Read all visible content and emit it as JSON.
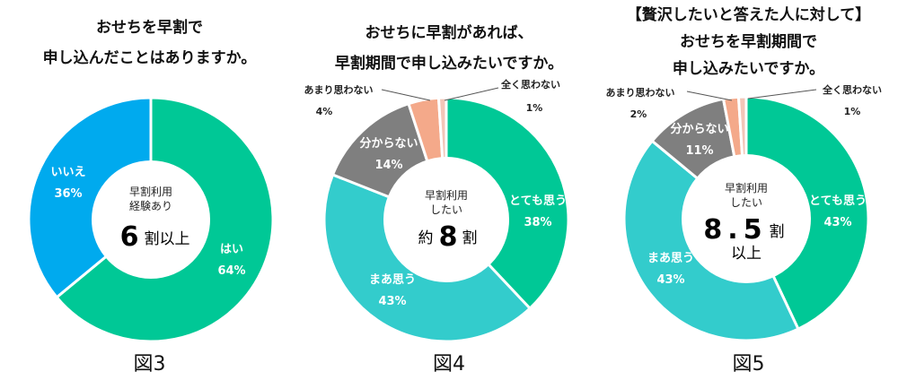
{
  "chart_data": [
    {
      "type": "pie",
      "title_lines": [
        "おせちを早割で",
        "申し込んだことはありますか。"
      ],
      "center": {
        "line1": "早割利用",
        "line2": "経験あり",
        "big": "6",
        "suffix": "割以上"
      },
      "series": [
        {
          "name": "はい",
          "value": 64,
          "label": "64%",
          "color": "#00c896"
        },
        {
          "name": "いいえ",
          "value": 36,
          "label": "36%",
          "color": "#00aaee"
        }
      ],
      "figure_label": "図3"
    },
    {
      "type": "pie",
      "title_lines": [
        "おせちに早割があれば、",
        "早割期間で申し込みたいですか。"
      ],
      "center": {
        "line1": "早割利用",
        "line2": "したい",
        "prefix": "約",
        "big": "8",
        "suffix": "割"
      },
      "series": [
        {
          "name": "とても思う",
          "value": 38,
          "label": "38%",
          "color": "#00c896"
        },
        {
          "name": "まあ思う",
          "value": 43,
          "label": "43%",
          "color": "#33cccc"
        },
        {
          "name": "分からない",
          "value": 14,
          "label": "14%",
          "color": "#7f7f7f"
        },
        {
          "name": "あまり思わない",
          "value": 4,
          "label": "4%",
          "color": "#f4a98a"
        },
        {
          "name": "全く思わない",
          "value": 1,
          "label": "1%",
          "color": "#f2c6b8"
        }
      ],
      "figure_label": "図4"
    },
    {
      "type": "pie",
      "title_lines": [
        "【贅沢したいと答えた人に対して】",
        "おせちを早割期間で",
        "申し込みたいですか。"
      ],
      "center": {
        "line1": "早割利用",
        "line2": "したい",
        "big": "8.5",
        "suffix": "割",
        "line3": "以上"
      },
      "series": [
        {
          "name": "とても思う",
          "value": 43,
          "label": "43%",
          "color": "#00c896"
        },
        {
          "name": "まあ思う",
          "value": 43,
          "label": "43%",
          "color": "#33cccc"
        },
        {
          "name": "分からない",
          "value": 11,
          "label": "11%",
          "color": "#7f7f7f"
        },
        {
          "name": "あまり思わない",
          "value": 2,
          "label": "2%",
          "color": "#f4a98a"
        },
        {
          "name": "全く思わない",
          "value": 1,
          "label": "1%",
          "color": "#f2c6b8"
        }
      ],
      "figure_label": "図5"
    }
  ]
}
